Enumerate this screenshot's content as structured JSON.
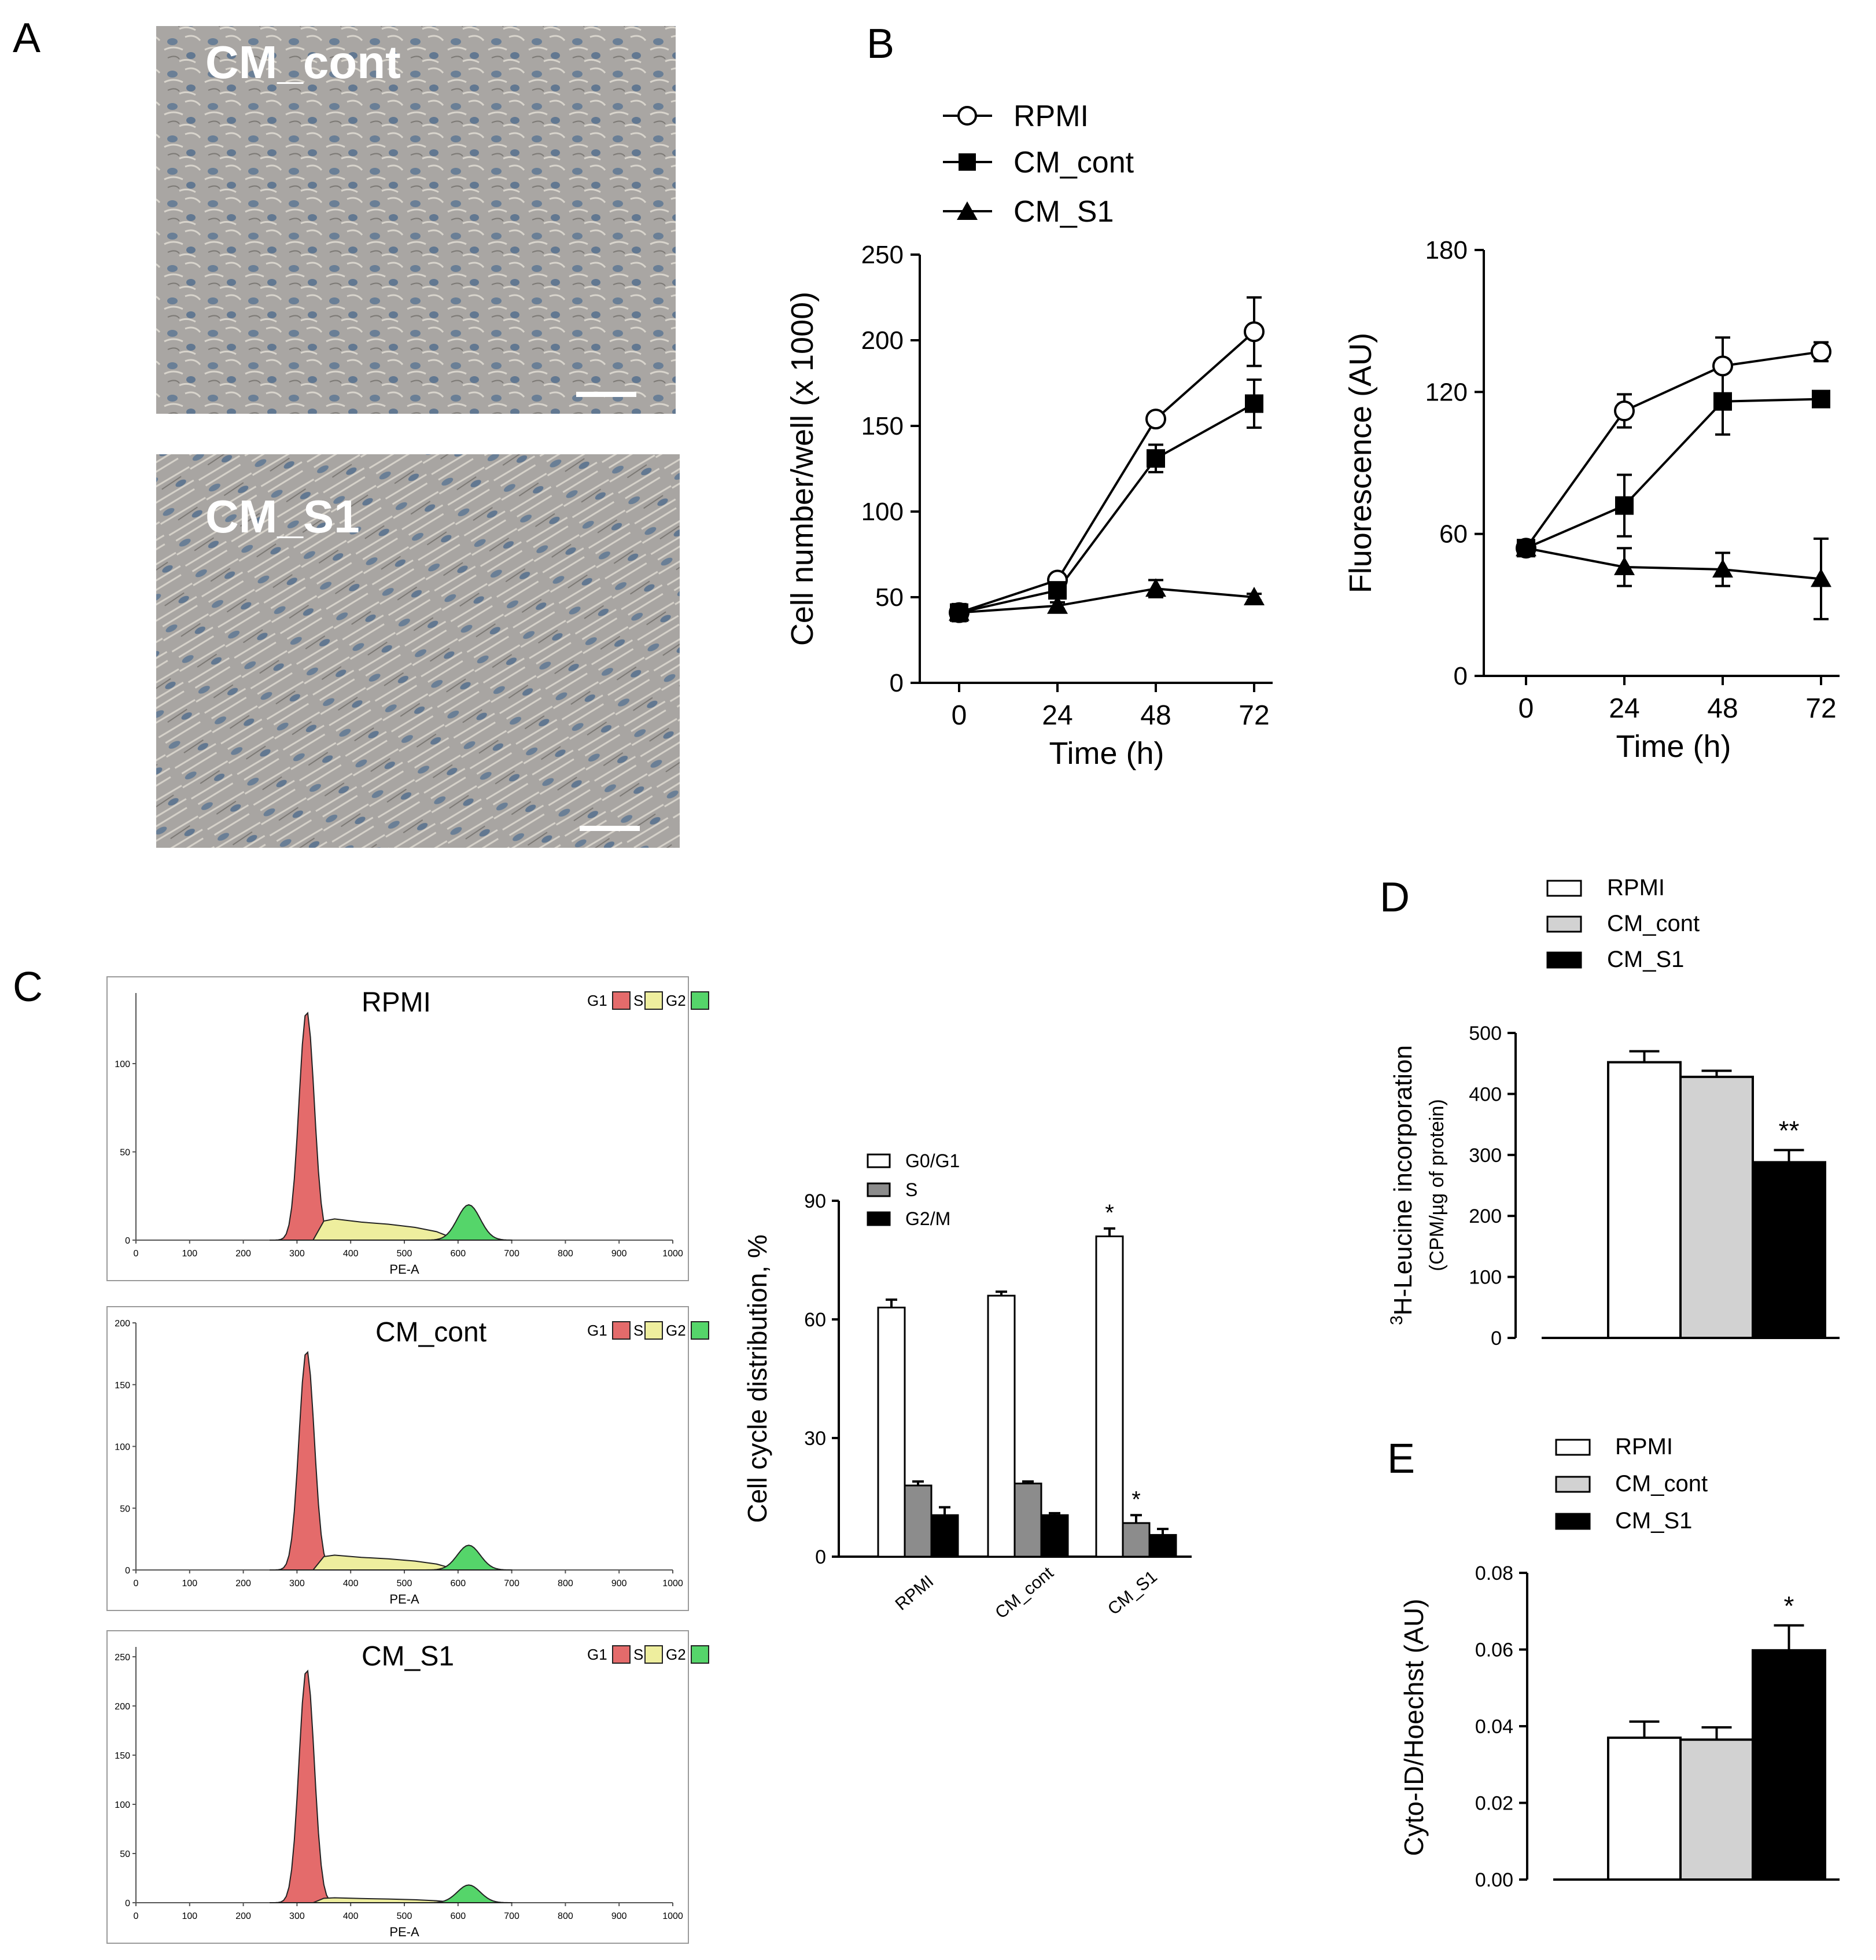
{
  "panel_labels": [
    "A",
    "B",
    "C",
    "D",
    "E"
  ],
  "panel_a": {
    "images": [
      {
        "label": "CM_cont"
      },
      {
        "label": "CM_S1"
      }
    ]
  },
  "colors": {
    "g1": "#e46b6b",
    "s": "#eeee9e",
    "g2": "#55d56a",
    "bar_white": "#ffffff",
    "bar_gray": "#d2d2d2",
    "bar_dark_gray": "#8c8c8c",
    "bar_black": "#000000",
    "micro_bg": "#a9a6a3",
    "cell": "#5f7894"
  },
  "chart_data": [
    {
      "id": "B_cell_number",
      "type": "line",
      "x": [
        0,
        24,
        48,
        72
      ],
      "xlabel": "Time (h)",
      "ylabel": "Cell number/well (x 1000)",
      "xticks": [
        "0",
        "24",
        "48",
        "72"
      ],
      "yticks": [
        "0",
        "50",
        "100",
        "150",
        "200",
        "250"
      ],
      "ylim": [
        0,
        250
      ],
      "series": [
        {
          "name": "RPMI",
          "marker": "circle",
          "values": [
            41,
            60,
            154,
            205
          ],
          "errors": [
            5,
            3,
            3,
            20
          ]
        },
        {
          "name": "CM_cont",
          "marker": "square",
          "values": [
            41,
            54,
            131,
            163
          ],
          "errors": [
            4,
            4,
            8,
            14
          ]
        },
        {
          "name": "CM_S1",
          "marker": "triangle",
          "values": [
            41,
            45,
            55,
            50
          ],
          "errors": [
            3,
            2,
            5,
            2
          ]
        }
      ]
    },
    {
      "id": "B_fluorescence",
      "type": "line",
      "x": [
        0,
        24,
        48,
        72
      ],
      "xlabel": "Time (h)",
      "ylabel": "Fluorescence  (AU)",
      "xticks": [
        "0",
        "24",
        "48",
        "72"
      ],
      "yticks": [
        "0",
        "60",
        "120",
        "180"
      ],
      "ylim": [
        0,
        180
      ],
      "series": [
        {
          "name": "RPMI",
          "marker": "circle",
          "values": [
            54,
            112,
            131,
            137
          ],
          "errors": [
            2,
            7,
            12,
            4
          ]
        },
        {
          "name": "CM_cont",
          "marker": "square",
          "values": [
            54,
            72,
            116,
            117
          ],
          "errors": [
            2,
            13,
            14,
            2
          ]
        },
        {
          "name": "CM_S1",
          "marker": "triangle",
          "values": [
            54,
            46,
            45,
            41
          ],
          "errors": [
            2,
            8,
            7,
            17
          ]
        }
      ]
    },
    {
      "id": "C_histograms",
      "type": "area",
      "xlabel": "PE-A",
      "xticks": [
        "0",
        "100",
        "200",
        "300",
        "400",
        "500",
        "600",
        "700",
        "800",
        "900",
        "1000"
      ],
      "legend": [
        "G1",
        "S",
        "G2"
      ],
      "plots": [
        {
          "title": "RPMI",
          "ymax": 140,
          "yticks": [
            "0",
            "50",
            "100"
          ],
          "g1_peak": 130,
          "s_level": 12,
          "g2_peak": 20
        },
        {
          "title": "CM_cont",
          "ymax": 200,
          "yticks": [
            "0",
            "50",
            "100",
            "150",
            "200"
          ],
          "g1_peak": 178,
          "s_level": 12,
          "g2_peak": 20
        },
        {
          "title": "CM_S1",
          "ymax": 260,
          "yticks": [
            "0",
            "50",
            "100",
            "150",
            "200",
            "250"
          ],
          "g1_peak": 238,
          "s_level": 5,
          "g2_peak": 18
        }
      ]
    },
    {
      "id": "C_cell_cycle",
      "type": "bar",
      "categories": [
        "RPMI",
        "CM_cont",
        "CM_S1"
      ],
      "ylabel": "Cell cycle distribution, %",
      "ylim": [
        0,
        90
      ],
      "yticks": [
        "0",
        "30",
        "60",
        "90"
      ],
      "series": [
        {
          "name": "G0/G1",
          "values": [
            63,
            66,
            81
          ],
          "errors": [
            2,
            1,
            2
          ],
          "sig": [
            "",
            "",
            "*"
          ]
        },
        {
          "name": "S",
          "values": [
            18,
            18.5,
            8.5
          ],
          "errors": [
            1,
            0.5,
            2
          ],
          "sig": [
            "",
            "",
            "*"
          ]
        },
        {
          "name": "G2/M",
          "values": [
            10.5,
            10.5,
            5.5
          ],
          "errors": [
            2,
            0.5,
            1.5
          ],
          "sig": [
            "",
            "",
            ""
          ]
        }
      ]
    },
    {
      "id": "D_leucine",
      "type": "bar",
      "categories": [
        "RPMI",
        "CM_cont",
        "CM_S1"
      ],
      "ylabel_sup": "3",
      "ylabel": "H-Leucine incorporation",
      "ylabel2": "(CPM/µg of protein)",
      "ylim": [
        0,
        500
      ],
      "yticks": [
        "0",
        "100",
        "200",
        "300",
        "400",
        "500"
      ],
      "values": [
        452,
        428,
        288
      ],
      "errors": [
        18,
        10,
        20
      ],
      "sig": [
        "",
        "",
        "**"
      ]
    },
    {
      "id": "E_cytoid",
      "type": "bar",
      "categories": [
        "RPMI",
        "CM_cont",
        "CM_S1"
      ],
      "ylabel": "Cyto-ID/Hoechst (AU)",
      "ylim": [
        0,
        0.08
      ],
      "yticks": [
        "0.00",
        "0.02",
        "0.04",
        "0.06",
        "0.08"
      ],
      "values": [
        0.037,
        0.0365,
        0.0598
      ],
      "errors": [
        0.0042,
        0.0032,
        0.0065
      ],
      "sig": [
        "",
        "",
        "*"
      ]
    }
  ]
}
